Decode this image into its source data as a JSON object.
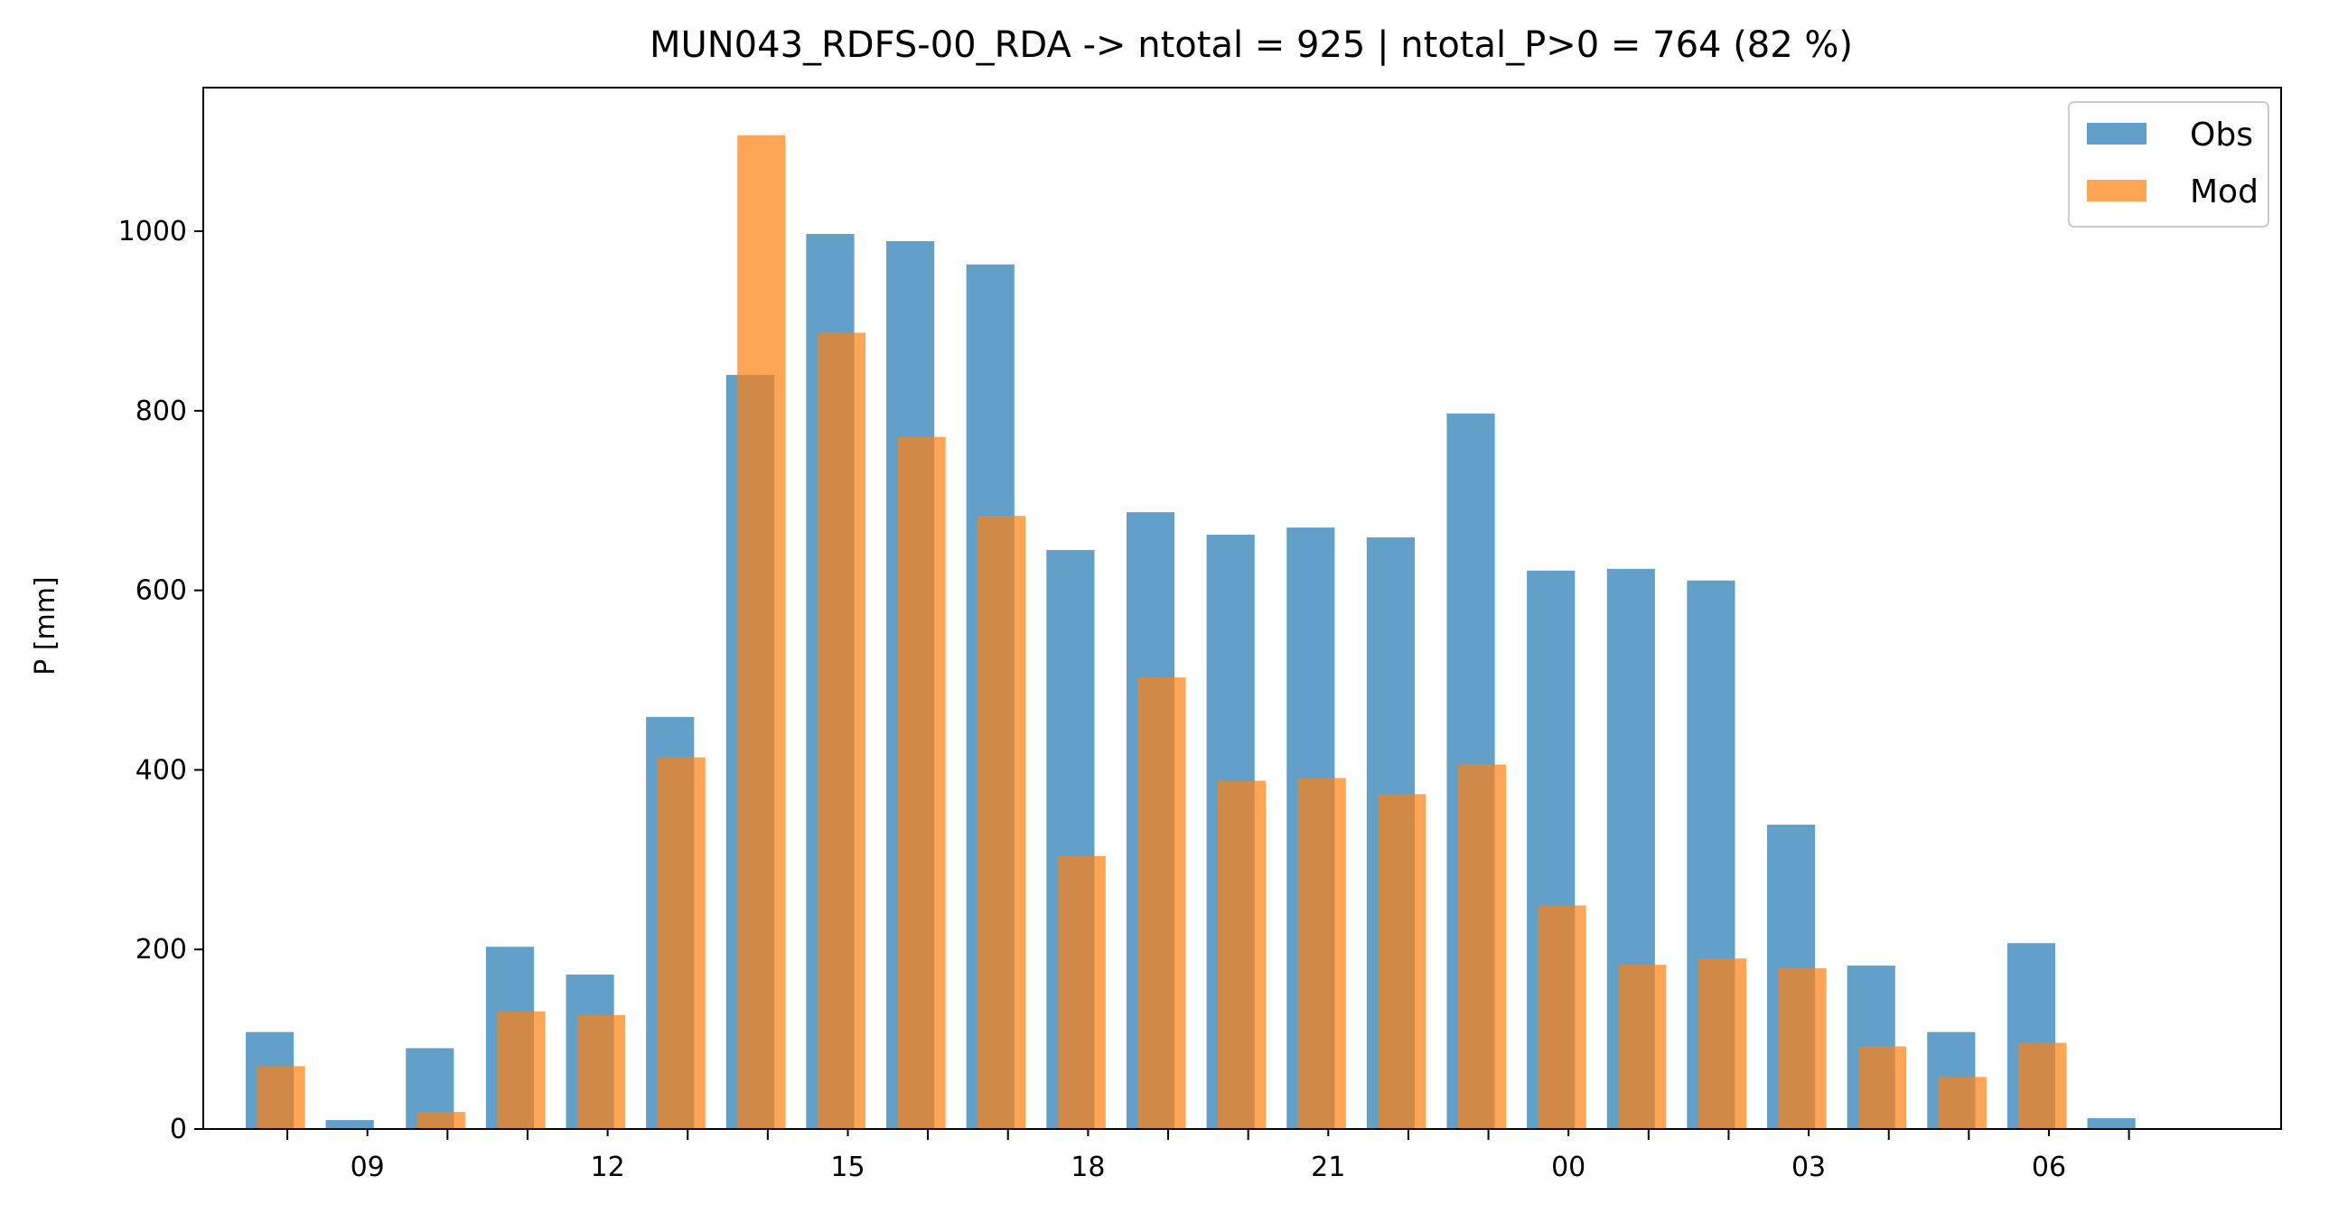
{
  "chart_data": {
    "type": "bar",
    "title": "MUN043_RDFS-00_RDA -> ntotal = 925 | ntotal_P>0 = 764 (82 %)",
    "xlabel": "",
    "ylabel": "P [mm]",
    "ylim": [
      0,
      1160
    ],
    "yticks": [
      0,
      200,
      400,
      600,
      800,
      1000
    ],
    "x_hours": [
      8,
      9,
      10,
      11,
      12,
      13,
      14,
      15,
      16,
      17,
      18,
      19,
      20,
      21,
      22,
      23,
      24,
      25,
      26,
      27,
      28,
      29,
      30,
      31
    ],
    "xlim": [
      6.95,
      32.9
    ],
    "xtick_hours": [
      9,
      12,
      15,
      18,
      21,
      24,
      27,
      30
    ],
    "xtick_labels": [
      "09",
      "12",
      "15",
      "18",
      "21",
      "00",
      "03",
      "06"
    ],
    "minor_tick_hours": [
      8,
      10,
      11,
      13,
      14,
      16,
      17,
      19,
      20,
      22,
      23,
      25,
      26,
      28,
      29,
      31
    ],
    "series": [
      {
        "name": "Obs",
        "color": "#1f77b4",
        "values": [
          108,
          10,
          90,
          203,
          172,
          459,
          840,
          997,
          989,
          963,
          645,
          687,
          662,
          670,
          659,
          797,
          622,
          624,
          611,
          339,
          182,
          108,
          207,
          12
        ]
      },
      {
        "name": "Mod",
        "color": "#ff7f0e",
        "values": [
          70,
          0,
          19,
          131,
          127,
          414,
          1107,
          887,
          771,
          683,
          304,
          503,
          388,
          391,
          373,
          406,
          249,
          183,
          190,
          179,
          92,
          58,
          96,
          0
        ]
      }
    ],
    "legend_position": "top-right",
    "grid": false
  }
}
